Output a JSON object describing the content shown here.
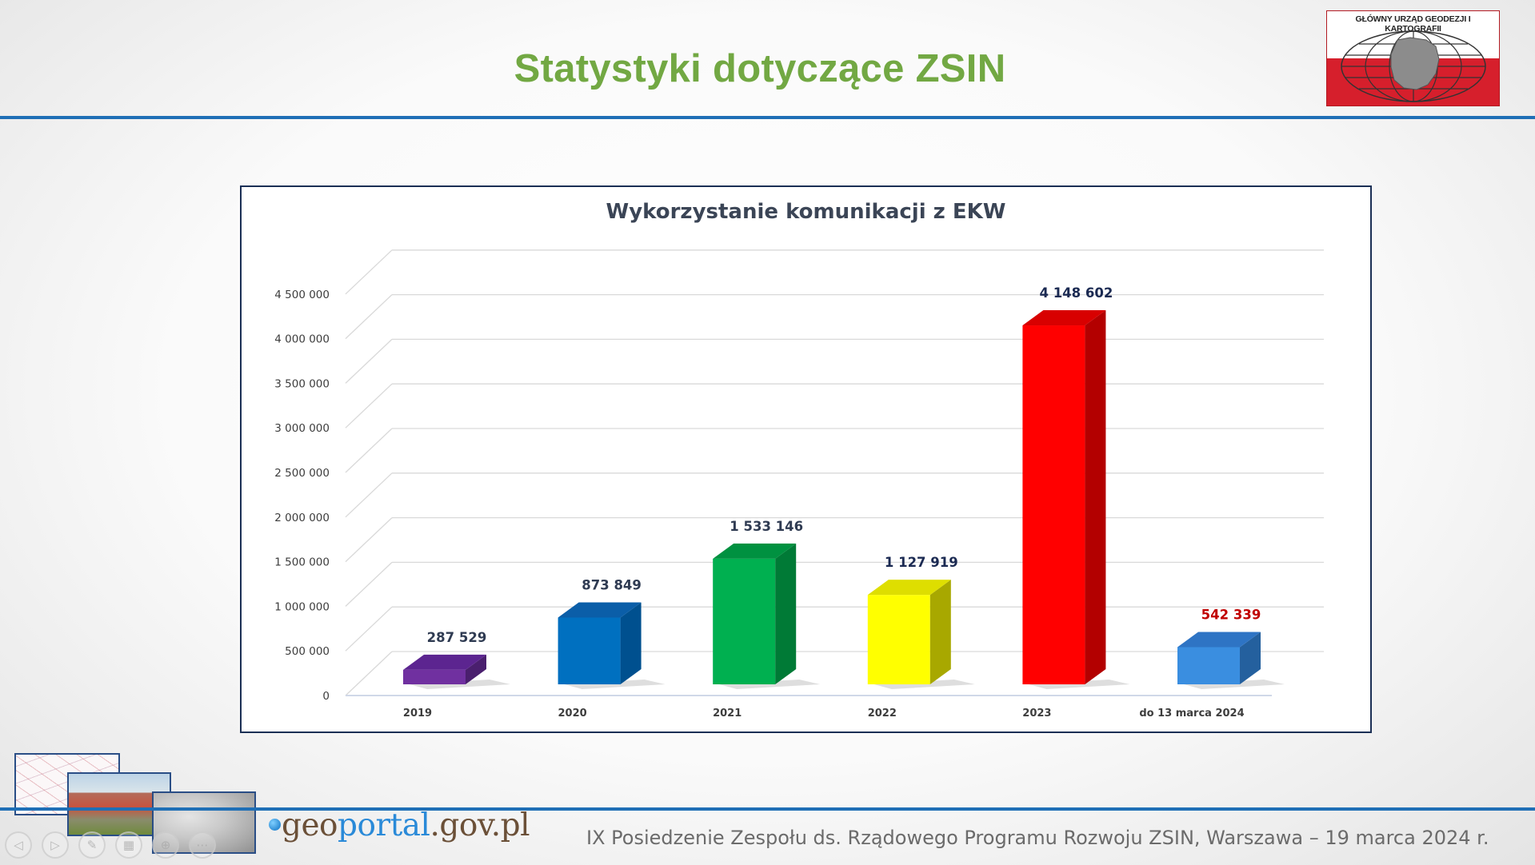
{
  "slide": {
    "title": "Statystyki dotyczące ZSIN",
    "footer": "IX Posiedzenie Zespołu ds. Rządowego Programu Rozwoju ZSIN, Warszawa – 19 marca 2024 r.",
    "accent_color": "#1f6fb6",
    "title_color": "#72a843"
  },
  "logo": {
    "text": "GŁÓWNY URZĄD GEODEZJI I KARTOGRAFII",
    "colors": [
      "#ffffff",
      "#d61f2c"
    ]
  },
  "branding": {
    "geo": "geo",
    "portal": "portal",
    "domain": ".gov.pl"
  },
  "nav_icons": [
    "previous-icon",
    "next-icon",
    "pen-icon",
    "slides-grid-icon",
    "zoom-icon",
    "more-icon"
  ],
  "chart_data": {
    "type": "bar",
    "title": "Wykorzystanie komunikacji z EKW",
    "xlabel": "",
    "ylabel": "",
    "ylim": [
      0,
      4500000
    ],
    "yticks": [
      {
        "value": 0,
        "label": "0"
      },
      {
        "value": 500000,
        "label": "500 000"
      },
      {
        "value": 1000000,
        "label": "1 000 000"
      },
      {
        "value": 1500000,
        "label": "1 500 000"
      },
      {
        "value": 2000000,
        "label": "2 000 000"
      },
      {
        "value": 2500000,
        "label": "2 500 000"
      },
      {
        "value": 3000000,
        "label": "3 000 000"
      },
      {
        "value": 3500000,
        "label": "3 500 000"
      },
      {
        "value": 4000000,
        "label": "4 000 000"
      },
      {
        "value": 4500000,
        "label": "4 500 000"
      }
    ],
    "grid": true,
    "style": "3d-column",
    "categories": [
      "2019",
      "2020",
      "2021",
      "2022",
      "2023",
      "do 13 marca  2024"
    ],
    "values": [
      287529,
      873849,
      1533146,
      1127919,
      4148602,
      542339
    ],
    "data_labels": [
      "287 529",
      "873 849",
      "1 533 146",
      "1 127 919",
      "4 148 602",
      "542 339"
    ],
    "colors": [
      "#7030a0",
      "#0070c0",
      "#00b050",
      "#ffff00",
      "#ff0000",
      "#3a8ee0"
    ],
    "side_colors": [
      "#4a1f6e",
      "#00508f",
      "#007a36",
      "#a8a800",
      "#b30000",
      "#24609e"
    ],
    "top_colors": [
      "#5c2590",
      "#0b5ea8",
      "#009140",
      "#dede00",
      "#d80000",
      "#2e74c4"
    ],
    "label_colors": [
      "#2f3b52",
      "#2f3b52",
      "#2f3b52",
      "#1b2a52",
      "#1b2a52",
      "#c00000"
    ]
  }
}
